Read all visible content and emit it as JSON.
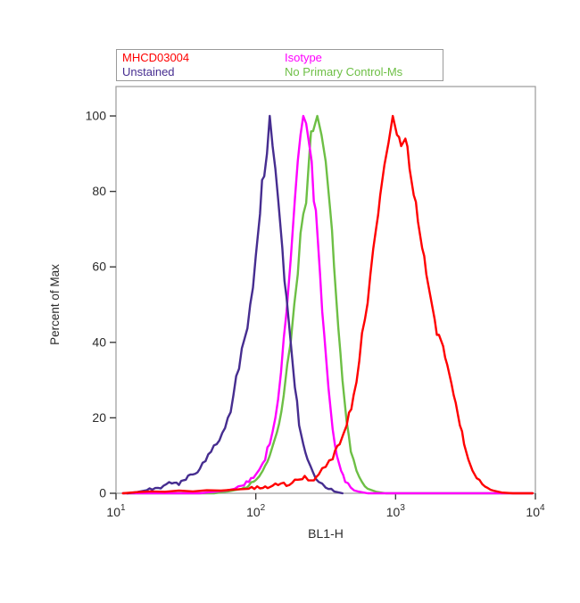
{
  "legend": {
    "items": [
      {
        "label": "MHCD03004",
        "color": "#ff0000"
      },
      {
        "label": "Isotype",
        "color": "#ff00ff"
      },
      {
        "label": "Unstained",
        "color": "#462d90"
      },
      {
        "label": "No Primary Control-Ms",
        "color": "#6dbf45"
      }
    ]
  },
  "axes": {
    "x": {
      "label": "BL1-H",
      "scale": "log10",
      "tick_base": "10",
      "tick_exponents": [
        1,
        2,
        3,
        4
      ]
    },
    "y": {
      "label": "Percent of Max",
      "min": 0,
      "max": 100,
      "ticks": [
        0,
        20,
        40,
        60,
        80,
        100
      ]
    }
  },
  "chart_data": {
    "type": "line",
    "subtype": "flow-cytometry-histogram",
    "title": "",
    "xlabel": "BL1-H",
    "ylabel": "Percent of Max",
    "x_scale": "log10",
    "xlim": [
      10,
      10000
    ],
    "ylim": [
      0,
      100
    ],
    "grid": false,
    "legend_position": "top",
    "series": [
      {
        "name": "No Primary Control-Ms",
        "color": "#6dbf45",
        "peak_x_approx": 260,
        "points_logx_y": [
          [
            1.05,
            0
          ],
          [
            1.7,
            0
          ],
          [
            1.8,
            0.5
          ],
          [
            1.9,
            1.2
          ],
          [
            1.95,
            2
          ],
          [
            2.0,
            3.5
          ],
          [
            2.05,
            6
          ],
          [
            2.1,
            10
          ],
          [
            2.15,
            16
          ],
          [
            2.2,
            26
          ],
          [
            2.25,
            40
          ],
          [
            2.3,
            58
          ],
          [
            2.34,
            74
          ],
          [
            2.38,
            88
          ],
          [
            2.41,
            96
          ],
          [
            2.44,
            100
          ],
          [
            2.47,
            95
          ],
          [
            2.5,
            88
          ],
          [
            2.53,
            76
          ],
          [
            2.56,
            60
          ],
          [
            2.59,
            44
          ],
          [
            2.62,
            30
          ],
          [
            2.65,
            19
          ],
          [
            2.68,
            11
          ],
          [
            2.72,
            6
          ],
          [
            2.76,
            3
          ],
          [
            2.8,
            1.2
          ],
          [
            2.86,
            0.4
          ],
          [
            2.93,
            0
          ],
          [
            3.98,
            0
          ]
        ]
      },
      {
        "name": "Isotype",
        "color": "#ff00ff",
        "peak_x_approx": 220,
        "points_logx_y": [
          [
            1.05,
            0
          ],
          [
            1.6,
            0
          ],
          [
            1.7,
            0.4
          ],
          [
            1.8,
            0.8
          ],
          [
            1.85,
            1.2
          ],
          [
            1.9,
            2
          ],
          [
            1.95,
            3
          ],
          [
            2.0,
            5
          ],
          [
            2.05,
            8
          ],
          [
            2.1,
            13
          ],
          [
            2.14,
            20
          ],
          [
            2.18,
            32
          ],
          [
            2.22,
            48
          ],
          [
            2.25,
            62
          ],
          [
            2.28,
            78
          ],
          [
            2.3,
            88
          ],
          [
            2.32,
            95
          ],
          [
            2.34,
            100
          ],
          [
            2.36,
            98
          ],
          [
            2.38,
            93
          ],
          [
            2.4,
            88
          ],
          [
            2.43,
            75
          ],
          [
            2.46,
            58
          ],
          [
            2.49,
            42
          ],
          [
            2.52,
            28
          ],
          [
            2.55,
            17
          ],
          [
            2.58,
            10
          ],
          [
            2.61,
            6
          ],
          [
            2.64,
            3
          ],
          [
            2.68,
            1.5
          ],
          [
            2.73,
            0.5
          ],
          [
            2.8,
            0
          ],
          [
            3.98,
            0
          ]
        ]
      },
      {
        "name": "Unstained",
        "color": "#462d90",
        "peak_x_approx": 128,
        "points_logx_y": [
          [
            1.08,
            0
          ],
          [
            1.15,
            0.3
          ],
          [
            1.22,
            0.8
          ],
          [
            1.28,
            1.4
          ],
          [
            1.34,
            2
          ],
          [
            1.4,
            2.6
          ],
          [
            1.45,
            2.2
          ],
          [
            1.5,
            3.6
          ],
          [
            1.55,
            5
          ],
          [
            1.6,
            6.5
          ],
          [
            1.64,
            8.5
          ],
          [
            1.68,
            11
          ],
          [
            1.72,
            13
          ],
          [
            1.76,
            16
          ],
          [
            1.8,
            20
          ],
          [
            1.84,
            26
          ],
          [
            1.88,
            33
          ],
          [
            1.92,
            41
          ],
          [
            1.96,
            50
          ],
          [
            2.0,
            63
          ],
          [
            2.03,
            74
          ],
          [
            2.06,
            84
          ],
          [
            2.08,
            90
          ],
          [
            2.1,
            100
          ],
          [
            2.12,
            92
          ],
          [
            2.14,
            86
          ],
          [
            2.16,
            78
          ],
          [
            2.19,
            65
          ],
          [
            2.22,
            52
          ],
          [
            2.25,
            40
          ],
          [
            2.28,
            28
          ],
          [
            2.31,
            18
          ],
          [
            2.34,
            13
          ],
          [
            2.37,
            9
          ],
          [
            2.41,
            5.5
          ],
          [
            2.45,
            3
          ],
          [
            2.5,
            1.5
          ],
          [
            2.56,
            0.5
          ],
          [
            2.62,
            0
          ]
        ]
      },
      {
        "name": "MHCD03004",
        "color": "#ff0000",
        "peak_x_approx": 950,
        "points_logx_y": [
          [
            1.05,
            0
          ],
          [
            1.15,
            0.3
          ],
          [
            1.25,
            0.5
          ],
          [
            1.35,
            0.4
          ],
          [
            1.45,
            0.7
          ],
          [
            1.55,
            0.5
          ],
          [
            1.65,
            0.8
          ],
          [
            1.75,
            0.7
          ],
          [
            1.85,
            1
          ],
          [
            1.95,
            1.2
          ],
          [
            2.05,
            1.4
          ],
          [
            2.12,
            2
          ],
          [
            2.18,
            2.6
          ],
          [
            2.24,
            2.2
          ],
          [
            2.3,
            3.6
          ],
          [
            2.35,
            4.6
          ],
          [
            2.4,
            3.4
          ],
          [
            2.45,
            5
          ],
          [
            2.5,
            7
          ],
          [
            2.55,
            9
          ],
          [
            2.6,
            13
          ],
          [
            2.65,
            18
          ],
          [
            2.7,
            26
          ],
          [
            2.74,
            35
          ],
          [
            2.78,
            46
          ],
          [
            2.82,
            58
          ],
          [
            2.86,
            70
          ],
          [
            2.89,
            79
          ],
          [
            2.92,
            87
          ],
          [
            2.95,
            93
          ],
          [
            2.98,
            100
          ],
          [
            3.01,
            95
          ],
          [
            3.04,
            92
          ],
          [
            3.07,
            94
          ],
          [
            3.1,
            86
          ],
          [
            3.13,
            79
          ],
          [
            3.16,
            72
          ],
          [
            3.19,
            65
          ],
          [
            3.22,
            58
          ],
          [
            3.25,
            52
          ],
          [
            3.28,
            46
          ],
          [
            3.31,
            42
          ],
          [
            3.34,
            39
          ],
          [
            3.37,
            34
          ],
          [
            3.4,
            29
          ],
          [
            3.43,
            24
          ],
          [
            3.46,
            18
          ],
          [
            3.49,
            13
          ],
          [
            3.52,
            9
          ],
          [
            3.55,
            6
          ],
          [
            3.58,
            4
          ],
          [
            3.62,
            2.4
          ],
          [
            3.66,
            1.4
          ],
          [
            3.7,
            0.7
          ],
          [
            3.76,
            0.2
          ],
          [
            3.84,
            0
          ],
          [
            3.98,
            0
          ]
        ]
      }
    ]
  }
}
